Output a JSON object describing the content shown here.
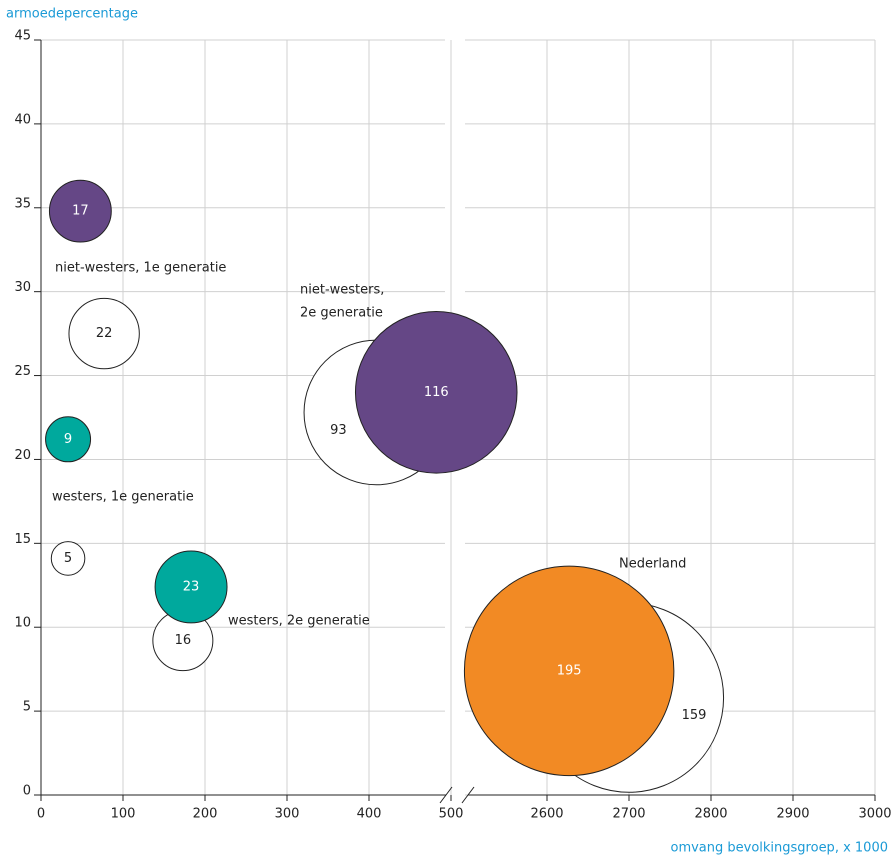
{
  "chart_data": {
    "type": "bubble",
    "y_label": "armoedepercentage",
    "x_label": "omvang bevolkingsgroep, x 1000",
    "ylim": [
      0,
      45
    ],
    "yticks": [
      0,
      5,
      10,
      15,
      20,
      25,
      30,
      35,
      40,
      45
    ],
    "x_panels": [
      {
        "xlim": [
          0,
          500
        ],
        "xticks": [
          0,
          100,
          200,
          300,
          400,
          500
        ]
      },
      {
        "xlim": [
          2500,
          3000
        ],
        "xticks": [
          2600,
          2700,
          2800,
          2900,
          3000
        ]
      }
    ],
    "grid": true,
    "points": [
      {
        "x": 48,
        "y": 34.8,
        "size": 17,
        "color": "#654786"
      },
      {
        "x": 77,
        "y": 27.5,
        "size": 22,
        "color": "#ffffff"
      },
      {
        "x": 33,
        "y": 21.2,
        "size": 9,
        "color": "#00a99d"
      },
      {
        "x": 33,
        "y": 14.1,
        "size": 5,
        "color": "#ffffff"
      },
      {
        "x": 173,
        "y": 9.2,
        "size": 16,
        "color": "#ffffff"
      },
      {
        "x": 183,
        "y": 12.4,
        "size": 23,
        "color": "#00a99d"
      },
      {
        "x": 409,
        "y": 22.8,
        "size": 93,
        "color": "#ffffff"
      },
      {
        "x": 482,
        "y": 24.0,
        "size": 116,
        "color": "#654786"
      },
      {
        "x": 2700,
        "y": 5.8,
        "size": 159,
        "color": "#ffffff"
      },
      {
        "x": 2627,
        "y": 7.4,
        "size": 195,
        "color": "#f28a24"
      }
    ],
    "annotations": [
      {
        "lines": [
          "niet-westers, 1e generatie"
        ]
      },
      {
        "lines": [
          "westers, 1e generatie"
        ]
      },
      {
        "lines": [
          "niet-westers,",
          "2e generatie"
        ]
      },
      {
        "lines": [
          "westers, 2e generatie"
        ]
      },
      {
        "lines": [
          "Nederland"
        ]
      }
    ]
  }
}
